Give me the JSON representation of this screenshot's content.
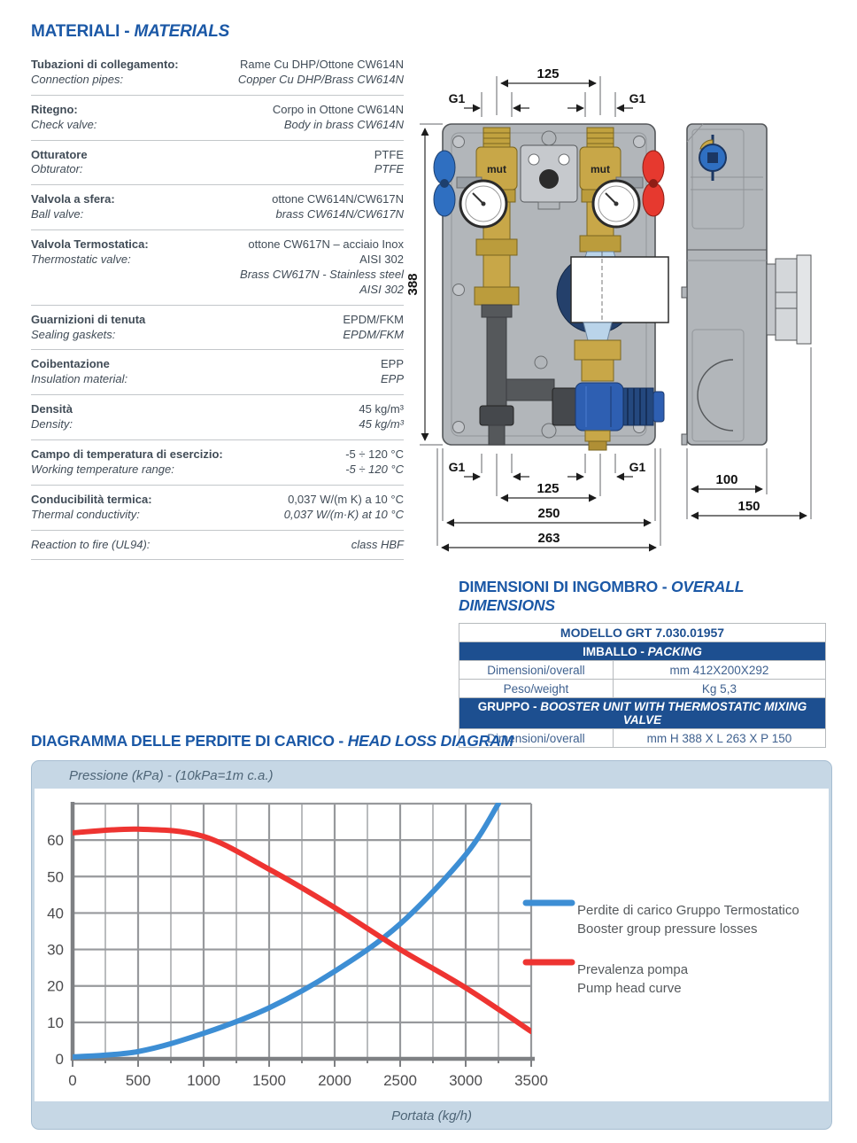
{
  "materials": {
    "title": {
      "main": "MATERIALI -",
      "italic": "MATERIALS"
    },
    "rows": [
      {
        "label_it": "Tubazioni di collegamento:",
        "label_en": "Connection pipes:",
        "value_it": "Rame Cu DHP/Ottone CW614N",
        "value_en": "Copper Cu DHP/Brass CW614N"
      },
      {
        "label_it": "Ritegno:",
        "label_en": "Check valve:",
        "value_it": "Corpo in Ottone CW614N",
        "value_en": "Body in brass CW614N"
      },
      {
        "label_it": "Otturatore",
        "label_en": "Obturator:",
        "value_it": "PTFE",
        "value_en": "PTFE"
      },
      {
        "label_it": "Valvola a sfera:",
        "label_en": "Ball valve:",
        "value_it": "ottone CW614N/CW617N",
        "value_en": "brass CW614N/CW617N"
      },
      {
        "label_it": "Valvola Termostatica:",
        "label_en": "Thermostatic valve:",
        "value_it": "ottone CW617N – acciaio Inox AISI 302",
        "value_en": "Brass CW617N - Stainless steel AISI 302"
      },
      {
        "label_it": "Guarnizioni di tenuta",
        "label_en": "Sealing gaskets:",
        "value_it": "EPDM/FKM",
        "value_en": "EPDM/FKM"
      },
      {
        "label_it": "Coibentazione",
        "label_en": "Insulation material:",
        "value_it": "EPP",
        "value_en": "EPP"
      },
      {
        "label_it": "Densità",
        "label_en": "Density:",
        "value_it": "45 kg/m³",
        "value_en": "45 kg/m³"
      },
      {
        "label_it": "Campo di temperatura di esercizio:",
        "label_en": "Working temperature range:",
        "value_it": "-5 ÷ 120 °C",
        "value_en": "-5 ÷ 120 °C"
      },
      {
        "label_it": "Conducibilità termica:",
        "label_en": "Thermal conductivity:",
        "value_it": "0,037 W/(m K) a 10 °C",
        "value_en": "0,037 W/(m·K) at 10 °C"
      },
      {
        "label_it": "",
        "label_en": "Reaction to fire (UL94):",
        "value_it": "",
        "value_en": "class HBF"
      }
    ]
  },
  "drawing": {
    "brand": "mut",
    "front": {
      "port_size": "G1",
      "dim_port_spacing": "125",
      "dim_height": "388",
      "dim_body_width": "250",
      "dim_total_width": "263"
    },
    "side": {
      "dim_body_depth": "100",
      "dim_total_depth": "150"
    }
  },
  "dimensions_section": {
    "title": {
      "main": "DIMENSIONI DI INGOMBRO -",
      "italic": "OVERALL DIMENSIONS"
    },
    "table": {
      "model": "MODELLO GRT 7.030.01957",
      "packing_header": {
        "main": "IMBALLO -",
        "italic": "PACKING"
      },
      "rows": [
        {
          "label": "Dimensioni/overall",
          "value": "mm 412X200X292"
        },
        {
          "label": "Peso/weight",
          "value": "Kg 5,3"
        }
      ],
      "group_header": {
        "main": "GRUPPO -",
        "italic": "BOOSTER UNIT WITH THERMOSTATIC MIXING VALVE"
      },
      "group_rows": [
        {
          "label": "Dimensioni/overall",
          "value": "mm H 388 X L 263 X P 150"
        }
      ]
    }
  },
  "chart_section": {
    "title": {
      "main": "DIAGRAMMA DELLE PERDITE DI CARICO -",
      "italic": "HEAD LOSS DIAGRAM"
    }
  },
  "chart_data": {
    "type": "line",
    "title": "DIAGRAMMA DELLE PERDITE DI CARICO - HEAD LOSS DIAGRAM",
    "xlabel": "Portata (kg/h)",
    "ylabel": "Pressione (kPa) - (10kPa=1m c.a.)",
    "xlim": [
      0,
      3500
    ],
    "ylim": [
      0,
      70
    ],
    "x_tick_step": 500,
    "x_minor_step": 250,
    "y_tick_step": 10,
    "y_label_max": 60,
    "grid": true,
    "legend_position": "right",
    "series": [
      {
        "name": "Perdite di carico Gruppo Termostatico / Booster group pressure losses",
        "color": "#3d8ed4",
        "points": [
          [
            0,
            0.5
          ],
          [
            500,
            2
          ],
          [
            1000,
            7
          ],
          [
            1500,
            14
          ],
          [
            2000,
            24
          ],
          [
            2500,
            37
          ],
          [
            3000,
            56
          ],
          [
            3250,
            70
          ]
        ]
      },
      {
        "name": "Prevalenza pompa / Pump head curve",
        "color": "#ee3431",
        "points": [
          [
            0,
            62
          ],
          [
            500,
            63
          ],
          [
            1000,
            61
          ],
          [
            1500,
            52
          ],
          [
            2000,
            41.5
          ],
          [
            2500,
            30
          ],
          [
            3000,
            19.5
          ],
          [
            3500,
            7.5
          ]
        ]
      }
    ],
    "legend": [
      {
        "line1": "Perdite di carico Gruppo Termostatico",
        "line2": "Booster group pressure losses",
        "color": "#3d8ed4"
      },
      {
        "line1": "Prevalenza pompa",
        "line2": "Pump head curve",
        "color": "#ee3431"
      }
    ]
  },
  "colors": {
    "accent_blue": "#1b58a6",
    "table_navy": "#1d4f90",
    "curve_blue": "#3d8ed4",
    "curve_red": "#ee3431",
    "panel_bg": "#c6d7e5",
    "grid_gray": "#9b9da0",
    "axis_gray": "#7e8083"
  }
}
